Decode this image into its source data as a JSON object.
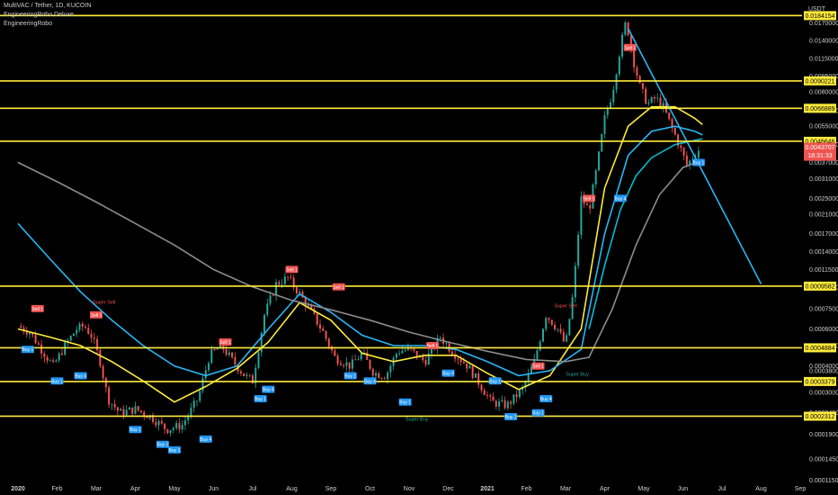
{
  "legend": {
    "symbol": "MultiVAC / Tether, 1D, KUCOIN",
    "indicator1": "EngineeringRobo Deluxe",
    "indicator2": "EngineeringRobo"
  },
  "chart_data": {
    "type": "line",
    "title": "MultiVAC / Tether, 1D, KUCOIN",
    "currency": "USDT",
    "y_scale": "log",
    "ylim": [
      0.00011,
      0.021
    ],
    "x_ticks": [
      "2020",
      "Feb",
      "Mar",
      "Apr",
      "May",
      "Jun",
      "Jul",
      "Aug",
      "Sep",
      "Oct",
      "Nov",
      "Dec",
      "2021",
      "Feb",
      "Mar",
      "Apr",
      "May",
      "Jun",
      "Jul",
      "Aug",
      "Sep"
    ],
    "y_ticks": [
      0.017,
      0.014,
      0.0115,
      0.0095,
      0.008,
      0.0065,
      0.0055,
      0.0045,
      0.0037,
      0.0031,
      0.0025,
      0.0021,
      0.0017,
      0.0014,
      0.00115,
      0.00095,
      0.00075,
      0.0006,
      0.0005,
      0.0004,
      0.00038,
      0.0003,
      0.00024,
      0.00019,
      0.000145,
      0.000115
    ],
    "y_tick_labels": [
      "0.0170000",
      "0.0140000",
      "0.0115000",
      "0.0095000",
      "0.0080000",
      "0.0065000",
      "0.0055000",
      "0.0045000",
      "0.0037000",
      "0.0031000",
      "0.0025000",
      "0.0021000",
      "0.0017000",
      "0.0014000",
      "0.0011500",
      "0.0009500",
      "0.0007500",
      "0.0006000",
      "0.0005000",
      "0.0004000",
      "0.0003800",
      "0.0003000",
      "0.0002400",
      "0.0001900",
      "0.0001450",
      "0.0001150"
    ],
    "levels": [
      {
        "value": 0.0184154,
        "label": "0.0184154"
      },
      {
        "value": 0.0090221,
        "label": "0.0090221"
      },
      {
        "value": 0.0066889,
        "label": "0.0066889"
      },
      {
        "value": 0.0046646,
        "label": "0.0046646"
      },
      {
        "value": 0.0009582,
        "label": "0.0009582"
      },
      {
        "value": 0.0004884,
        "label": "0.0004884"
      },
      {
        "value": 0.0003379,
        "label": "0.0003379"
      },
      {
        "value": 0.0002312,
        "label": "0.0002312"
      }
    ],
    "last_price": {
      "value": 0.0043707,
      "label": "0.0043707",
      "countdown": "18:31:33"
    },
    "price_path": [
      {
        "m": 0.0,
        "v": 0.00062
      },
      {
        "m": 0.3,
        "v": 0.00058
      },
      {
        "m": 0.6,
        "v": 0.00048
      },
      {
        "m": 0.9,
        "v": 0.0004
      },
      {
        "m": 1.2,
        "v": 0.0005
      },
      {
        "m": 1.5,
        "v": 0.0006
      },
      {
        "m": 1.7,
        "v": 0.00062
      },
      {
        "m": 1.9,
        "v": 0.00055
      },
      {
        "m": 2.1,
        "v": 0.00042
      },
      {
        "m": 2.3,
        "v": 0.00028
      },
      {
        "m": 2.6,
        "v": 0.00024
      },
      {
        "m": 3.0,
        "v": 0.00025
      },
      {
        "m": 3.4,
        "v": 0.00023
      },
      {
        "m": 3.8,
        "v": 0.0002
      },
      {
        "m": 4.2,
        "v": 0.00021
      },
      {
        "m": 4.6,
        "v": 0.00028
      },
      {
        "m": 4.9,
        "v": 0.00045
      },
      {
        "m": 5.2,
        "v": 0.0005
      },
      {
        "m": 5.5,
        "v": 0.00042
      },
      {
        "m": 5.8,
        "v": 0.00036
      },
      {
        "m": 6.0,
        "v": 0.00034
      },
      {
        "m": 6.3,
        "v": 0.0007
      },
      {
        "m": 6.6,
        "v": 0.00098
      },
      {
        "m": 6.9,
        "v": 0.00105
      },
      {
        "m": 7.2,
        "v": 0.00088
      },
      {
        "m": 7.5,
        "v": 0.00072
      },
      {
        "m": 7.8,
        "v": 0.00058
      },
      {
        "m": 8.1,
        "v": 0.00044
      },
      {
        "m": 8.5,
        "v": 0.0004
      },
      {
        "m": 8.8,
        "v": 0.00046
      },
      {
        "m": 9.1,
        "v": 0.00037
      },
      {
        "m": 9.4,
        "v": 0.00036
      },
      {
        "m": 9.7,
        "v": 0.00047
      },
      {
        "m": 10.0,
        "v": 0.00048
      },
      {
        "m": 10.4,
        "v": 0.00042
      },
      {
        "m": 10.8,
        "v": 0.00055
      },
      {
        "m": 11.1,
        "v": 0.00047
      },
      {
        "m": 11.5,
        "v": 0.0004
      },
      {
        "m": 11.8,
        "v": 0.00033
      },
      {
        "m": 12.1,
        "v": 0.00027
      },
      {
        "m": 12.5,
        "v": 0.00026
      },
      {
        "m": 12.9,
        "v": 0.00031
      },
      {
        "m": 13.2,
        "v": 0.00042
      },
      {
        "m": 13.5,
        "v": 0.0007
      },
      {
        "m": 13.8,
        "v": 0.0006
      },
      {
        "m": 14.0,
        "v": 0.0005
      },
      {
        "m": 14.2,
        "v": 0.0009
      },
      {
        "m": 14.4,
        "v": 0.0025
      },
      {
        "m": 14.6,
        "v": 0.0022
      },
      {
        "m": 14.8,
        "v": 0.0035
      },
      {
        "m": 15.0,
        "v": 0.006
      },
      {
        "m": 15.2,
        "v": 0.008
      },
      {
        "m": 15.4,
        "v": 0.013
      },
      {
        "m": 15.55,
        "v": 0.0175
      },
      {
        "m": 15.7,
        "v": 0.012
      },
      {
        "m": 15.9,
        "v": 0.0085
      },
      {
        "m": 16.1,
        "v": 0.007
      },
      {
        "m": 16.3,
        "v": 0.0075
      },
      {
        "m": 16.5,
        "v": 0.0068
      },
      {
        "m": 16.7,
        "v": 0.0055
      },
      {
        "m": 16.9,
        "v": 0.0045
      },
      {
        "m": 17.1,
        "v": 0.0036
      },
      {
        "m": 17.3,
        "v": 0.004
      },
      {
        "m": 17.45,
        "v": 0.0043707
      }
    ],
    "moving_averages": [
      {
        "color": "#ffeb3b",
        "points": [
          {
            "m": 0.0,
            "v": 0.0006
          },
          {
            "m": 0.8,
            "v": 0.00055
          },
          {
            "m": 1.6,
            "v": 0.0005
          },
          {
            "m": 2.4,
            "v": 0.00042
          },
          {
            "m": 3.2,
            "v": 0.00034
          },
          {
            "m": 4.0,
            "v": 0.00027
          },
          {
            "m": 4.8,
            "v": 0.00032
          },
          {
            "m": 5.6,
            "v": 0.00039
          },
          {
            "m": 6.4,
            "v": 0.00052
          },
          {
            "m": 7.2,
            "v": 0.0008
          },
          {
            "m": 8.0,
            "v": 0.00066
          },
          {
            "m": 8.8,
            "v": 0.00046
          },
          {
            "m": 9.6,
            "v": 0.00042
          },
          {
            "m": 10.4,
            "v": 0.00045
          },
          {
            "m": 11.2,
            "v": 0.00045
          },
          {
            "m": 12.0,
            "v": 0.00037
          },
          {
            "m": 12.8,
            "v": 0.00031
          },
          {
            "m": 13.6,
            "v": 0.00036
          },
          {
            "m": 14.4,
            "v": 0.0006
          },
          {
            "m": 15.0,
            "v": 0.0028
          },
          {
            "m": 15.6,
            "v": 0.0055
          },
          {
            "m": 16.2,
            "v": 0.0068
          },
          {
            "m": 16.8,
            "v": 0.0068
          },
          {
            "m": 17.3,
            "v": 0.006
          },
          {
            "m": 17.5,
            "v": 0.0056
          }
        ]
      },
      {
        "color": "#29b6f6",
        "points": [
          {
            "m": 0.0,
            "v": 0.0019
          },
          {
            "m": 0.8,
            "v": 0.0013
          },
          {
            "m": 1.6,
            "v": 0.0009
          },
          {
            "m": 2.4,
            "v": 0.00066
          },
          {
            "m": 3.2,
            "v": 0.0005
          },
          {
            "m": 4.0,
            "v": 0.0004
          },
          {
            "m": 4.8,
            "v": 0.00036
          },
          {
            "m": 5.6,
            "v": 0.0004
          },
          {
            "m": 6.4,
            "v": 0.0006
          },
          {
            "m": 7.2,
            "v": 0.00088
          },
          {
            "m": 8.0,
            "v": 0.00072
          },
          {
            "m": 8.8,
            "v": 0.00056
          },
          {
            "m": 9.6,
            "v": 0.0005
          },
          {
            "m": 10.4,
            "v": 0.0005
          },
          {
            "m": 11.2,
            "v": 0.00048
          },
          {
            "m": 12.0,
            "v": 0.00042
          },
          {
            "m": 12.8,
            "v": 0.00036
          },
          {
            "m": 13.6,
            "v": 0.00038
          },
          {
            "m": 14.4,
            "v": 0.00048
          },
          {
            "m": 15.0,
            "v": 0.0017
          },
          {
            "m": 15.6,
            "v": 0.004
          },
          {
            "m": 16.2,
            "v": 0.0052
          },
          {
            "m": 16.8,
            "v": 0.0055
          },
          {
            "m": 17.3,
            "v": 0.0052
          },
          {
            "m": 17.5,
            "v": 0.005
          }
        ]
      },
      {
        "color": "#00bcd4",
        "points": [
          {
            "m": 14.6,
            "v": 0.0006
          },
          {
            "m": 15.0,
            "v": 0.0012
          },
          {
            "m": 15.4,
            "v": 0.0022
          },
          {
            "m": 15.8,
            "v": 0.0032
          },
          {
            "m": 16.2,
            "v": 0.0039
          },
          {
            "m": 16.8,
            "v": 0.0045
          },
          {
            "m": 17.5,
            "v": 0.0048
          }
        ]
      },
      {
        "color": "#8c8c8c",
        "points": [
          {
            "m": 0.0,
            "v": 0.0037
          },
          {
            "m": 1.0,
            "v": 0.003
          },
          {
            "m": 2.0,
            "v": 0.0024
          },
          {
            "m": 3.0,
            "v": 0.0019
          },
          {
            "m": 4.0,
            "v": 0.0015
          },
          {
            "m": 5.0,
            "v": 0.00115
          },
          {
            "m": 6.0,
            "v": 0.00095
          },
          {
            "m": 7.0,
            "v": 0.00082
          },
          {
            "m": 8.0,
            "v": 0.00074
          },
          {
            "m": 9.0,
            "v": 0.00066
          },
          {
            "m": 10.0,
            "v": 0.00058
          },
          {
            "m": 11.0,
            "v": 0.00052
          },
          {
            "m": 12.0,
            "v": 0.00047
          },
          {
            "m": 13.0,
            "v": 0.00043
          },
          {
            "m": 14.0,
            "v": 0.00042
          },
          {
            "m": 14.6,
            "v": 0.00044
          },
          {
            "m": 15.2,
            "v": 0.00075
          },
          {
            "m": 15.8,
            "v": 0.0015
          },
          {
            "m": 16.4,
            "v": 0.0026
          },
          {
            "m": 17.0,
            "v": 0.0035
          },
          {
            "m": 17.5,
            "v": 0.0038
          }
        ]
      }
    ],
    "trend_projection": [
      {
        "m": 15.6,
        "v": 0.016
      },
      {
        "m": 19.0,
        "v": 0.00098
      }
    ],
    "signals": [
      {
        "label": "Sell 1",
        "kind": "sell",
        "m": 0.5,
        "v": 0.00075
      },
      {
        "label": "Buy 1",
        "kind": "buy",
        "m": 0.25,
        "v": 0.00048
      },
      {
        "label": "Buy 1",
        "kind": "buy",
        "m": 1.0,
        "v": 0.00034
      },
      {
        "label": "Buy 4",
        "kind": "buy",
        "m": 1.6,
        "v": 0.00036
      },
      {
        "label": "Sell 1",
        "kind": "sell",
        "m": 2.0,
        "v": 0.0007
      },
      {
        "label": "Buy 1",
        "kind": "buy",
        "m": 3.0,
        "v": 0.0002
      },
      {
        "label": "Buy 1",
        "kind": "buy",
        "m": 3.7,
        "v": 0.00017
      },
      {
        "label": "Buy 1",
        "kind": "buy",
        "m": 4.0,
        "v": 0.00016
      },
      {
        "label": "Buy 4",
        "kind": "buy",
        "m": 4.8,
        "v": 0.00018
      },
      {
        "label": "Sell 1",
        "kind": "sell",
        "m": 5.3,
        "v": 0.00052
      },
      {
        "label": "Buy 4",
        "kind": "buy",
        "m": 6.4,
        "v": 0.00031
      },
      {
        "label": "Buy 1",
        "kind": "buy",
        "m": 6.2,
        "v": 0.00028
      },
      {
        "label": "Sell 1",
        "kind": "sell",
        "m": 7.0,
        "v": 0.00115
      },
      {
        "label": "Sell 1",
        "kind": "sell",
        "m": 8.2,
        "v": 0.00095
      },
      {
        "label": "Buy 1",
        "kind": "buy",
        "m": 8.5,
        "v": 0.00036
      },
      {
        "label": "Buy 4",
        "kind": "buy",
        "m": 9.0,
        "v": 0.00034
      },
      {
        "label": "Buy 1",
        "kind": "buy",
        "m": 9.9,
        "v": 0.00027
      },
      {
        "label": "Sell 1",
        "kind": "sell",
        "m": 10.6,
        "v": 0.0005
      },
      {
        "label": "Buy 4",
        "kind": "buy",
        "m": 11.0,
        "v": 0.00037
      },
      {
        "label": "Buy 1",
        "kind": "buy",
        "m": 12.2,
        "v": 0.00034
      },
      {
        "label": "Buy 1",
        "kind": "buy",
        "m": 12.6,
        "v": 0.00023
      },
      {
        "label": "Sell 1",
        "kind": "sell",
        "m": 13.3,
        "v": 0.0004
      },
      {
        "label": "Buy 4",
        "kind": "buy",
        "m": 13.5,
        "v": 0.00028
      },
      {
        "label": "Buy 1",
        "kind": "buy",
        "m": 13.3,
        "v": 0.00024
      },
      {
        "label": "Sell 1",
        "kind": "sell",
        "m": 14.6,
        "v": 0.0025
      },
      {
        "label": "Buy 4",
        "kind": "buy",
        "m": 15.4,
        "v": 0.0025
      },
      {
        "label": "Sell 1",
        "kind": "sell",
        "m": 15.65,
        "v": 0.013
      },
      {
        "label": "Buy 1",
        "kind": "buy",
        "m": 17.4,
        "v": 0.0037
      }
    ],
    "annotations": [
      {
        "text": "Super Sell",
        "color": "#ef5350",
        "m": 2.2,
        "v": 0.00079
      },
      {
        "text": "Super Sell",
        "color": "#ef5350",
        "m": 14.0,
        "v": 0.00076
      },
      {
        "text": "Super Buy",
        "color": "#26a69a",
        "m": 14.3,
        "v": 0.00036
      },
      {
        "text": "Super Buy",
        "color": "#26a69a",
        "m": 10.2,
        "v": 0.00022
      }
    ],
    "grid": false,
    "legend_position": "top-left"
  }
}
